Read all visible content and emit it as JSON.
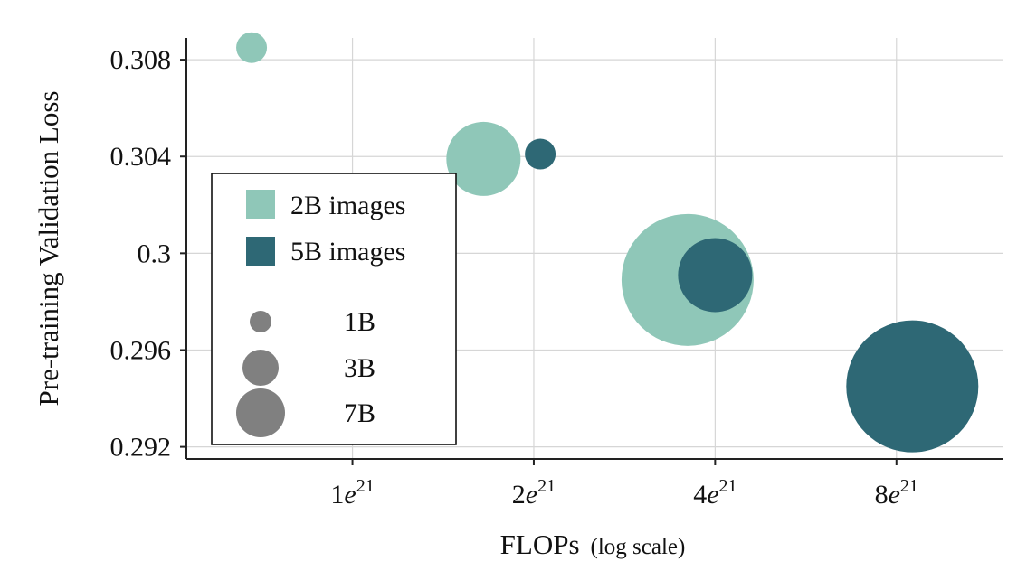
{
  "chart_data": {
    "type": "scatter",
    "xlabel": "FLOPs",
    "xlabel_note": "(log scale)",
    "ylabel": "Pre-training Validation Loss",
    "x_scale": "log",
    "x_ticks": [
      {
        "value": 1e+21,
        "base": "1",
        "exp": "21"
      },
      {
        "value": 2e+21,
        "base": "2",
        "exp": "21"
      },
      {
        "value": 4e+21,
        "base": "4",
        "exp": "21"
      },
      {
        "value": 8e+21,
        "base": "8",
        "exp": "21"
      }
    ],
    "y_ticks": [
      {
        "value": 0.292,
        "label": "0.292"
      },
      {
        "value": 0.296,
        "label": "0.296"
      },
      {
        "value": 0.3,
        "label": "0.3"
      },
      {
        "value": 0.304,
        "label": "0.304"
      },
      {
        "value": 0.308,
        "label": "0.308"
      }
    ],
    "xlim": [
      5.3e+20,
      1.2e+22
    ],
    "ylim": [
      0.2915,
      0.3089
    ],
    "grid": true,
    "legend_position": "left",
    "series": [
      {
        "name": "2B images",
        "color": "#8fc7b8",
        "points": [
          {
            "x": 6.8e+20,
            "y": 0.3085,
            "size": "1B"
          },
          {
            "x": 1.65e+21,
            "y": 0.3039,
            "size": "3B"
          },
          {
            "x": 3.6e+21,
            "y": 0.2989,
            "size": "7B"
          }
        ]
      },
      {
        "name": "5B images",
        "color": "#2e6875",
        "points": [
          {
            "x": 2.05e+21,
            "y": 0.3041,
            "size": "1B"
          },
          {
            "x": 4e+21,
            "y": 0.2991,
            "size": "3B"
          },
          {
            "x": 8.5e+21,
            "y": 0.2945,
            "size": "7B"
          }
        ]
      }
    ],
    "size_legend": [
      {
        "label": "1B",
        "size": "1B"
      },
      {
        "label": "3B",
        "size": "3B"
      },
      {
        "label": "7B",
        "size": "7B"
      }
    ],
    "size_legend_color": "#808080"
  }
}
